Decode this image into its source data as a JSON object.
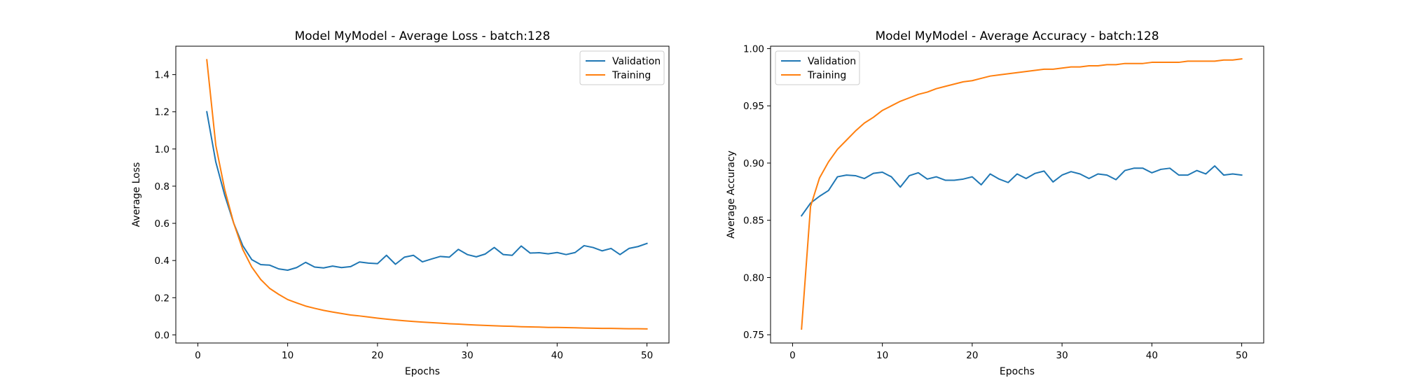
{
  "chart_data": [
    {
      "type": "line",
      "title": "Model MyModel - Average Loss - batch:128",
      "xlabel": "Epochs",
      "ylabel": "Average Loss",
      "xlim": [
        -2.45,
        52.45
      ],
      "ylim": [
        -0.0437,
        1.5529
      ],
      "xticks": [
        0,
        10,
        20,
        30,
        40,
        50
      ],
      "yticks": [
        0.0,
        0.2,
        0.4,
        0.6,
        0.8,
        1.0,
        1.2,
        1.4
      ],
      "ytick_labels": [
        "0.0",
        "0.2",
        "0.4",
        "0.6",
        "0.8",
        "1.0",
        "1.2",
        "1.4"
      ],
      "grid": false,
      "legend_position": "upper right",
      "x": [
        1,
        2,
        3,
        4,
        5,
        6,
        7,
        8,
        9,
        10,
        11,
        12,
        13,
        14,
        15,
        16,
        17,
        18,
        19,
        20,
        21,
        22,
        23,
        24,
        25,
        26,
        27,
        28,
        29,
        30,
        31,
        32,
        33,
        34,
        35,
        36,
        37,
        38,
        39,
        40,
        41,
        42,
        43,
        44,
        45,
        46,
        47,
        48,
        49,
        50
      ],
      "series": [
        {
          "name": "Validation",
          "color": "#1f77b4",
          "values": [
            1.2,
            0.93,
            0.75,
            0.6,
            0.48,
            0.405,
            0.378,
            0.375,
            0.355,
            0.348,
            0.362,
            0.39,
            0.365,
            0.36,
            0.37,
            0.362,
            0.367,
            0.392,
            0.386,
            0.383,
            0.428,
            0.38,
            0.418,
            0.428,
            0.393,
            0.408,
            0.422,
            0.418,
            0.46,
            0.432,
            0.42,
            0.435,
            0.47,
            0.432,
            0.428,
            0.478,
            0.44,
            0.442,
            0.436,
            0.443,
            0.432,
            0.443,
            0.48,
            0.47,
            0.452,
            0.465,
            0.432,
            0.465,
            0.475,
            0.492
          ]
        },
        {
          "name": "Training",
          "color": "#ff7f0e",
          "values": [
            1.48,
            1.02,
            0.78,
            0.6,
            0.46,
            0.365,
            0.298,
            0.25,
            0.218,
            0.19,
            0.172,
            0.155,
            0.143,
            0.132,
            0.123,
            0.115,
            0.107,
            0.102,
            0.096,
            0.09,
            0.085,
            0.08,
            0.076,
            0.072,
            0.069,
            0.066,
            0.063,
            0.06,
            0.058,
            0.055,
            0.053,
            0.051,
            0.049,
            0.047,
            0.046,
            0.044,
            0.043,
            0.042,
            0.04,
            0.04,
            0.039,
            0.038,
            0.037,
            0.036,
            0.035,
            0.035,
            0.034,
            0.033,
            0.033,
            0.032
          ]
        }
      ]
    },
    {
      "type": "line",
      "title": "Model MyModel - Average Accuracy - batch:128",
      "xlabel": "Epochs",
      "ylabel": "Average Accuracy",
      "xlim": [
        -2.45,
        52.45
      ],
      "ylim": [
        0.7428,
        1.0021
      ],
      "xticks": [
        0,
        10,
        20,
        30,
        40,
        50
      ],
      "yticks": [
        0.75,
        0.8,
        0.85,
        0.9,
        0.95,
        1.0
      ],
      "ytick_labels": [
        "0.75",
        "0.80",
        "0.85",
        "0.90",
        "0.95",
        "1.00"
      ],
      "grid": false,
      "legend_position": "upper left",
      "x": [
        1,
        2,
        3,
        4,
        5,
        6,
        7,
        8,
        9,
        10,
        11,
        12,
        13,
        14,
        15,
        16,
        17,
        18,
        19,
        20,
        21,
        22,
        23,
        24,
        25,
        26,
        27,
        28,
        29,
        30,
        31,
        32,
        33,
        34,
        35,
        36,
        37,
        38,
        39,
        40,
        41,
        42,
        43,
        44,
        45,
        46,
        47,
        48,
        49,
        50
      ],
      "series": [
        {
          "name": "Validation",
          "color": "#1f77b4",
          "values": [
            0.854,
            0.865,
            0.871,
            0.876,
            0.888,
            0.8895,
            0.889,
            0.8865,
            0.891,
            0.892,
            0.888,
            0.879,
            0.889,
            0.8915,
            0.886,
            0.888,
            0.885,
            0.885,
            0.886,
            0.888,
            0.881,
            0.8905,
            0.886,
            0.883,
            0.8905,
            0.8865,
            0.891,
            0.893,
            0.8835,
            0.8895,
            0.8925,
            0.8905,
            0.8865,
            0.8905,
            0.8895,
            0.8855,
            0.8935,
            0.8955,
            0.8955,
            0.8915,
            0.8945,
            0.8955,
            0.8895,
            0.8895,
            0.8935,
            0.8905,
            0.8975,
            0.8895,
            0.8905,
            0.8895
          ]
        },
        {
          "name": "Training",
          "color": "#ff7f0e",
          "values": [
            0.755,
            0.862,
            0.887,
            0.901,
            0.912,
            0.92,
            0.928,
            0.935,
            0.94,
            0.946,
            0.95,
            0.954,
            0.957,
            0.96,
            0.962,
            0.965,
            0.967,
            0.969,
            0.971,
            0.972,
            0.974,
            0.976,
            0.977,
            0.978,
            0.979,
            0.98,
            0.981,
            0.982,
            0.982,
            0.983,
            0.984,
            0.984,
            0.985,
            0.985,
            0.986,
            0.986,
            0.987,
            0.987,
            0.987,
            0.988,
            0.988,
            0.988,
            0.988,
            0.989,
            0.989,
            0.989,
            0.989,
            0.99,
            0.99,
            0.991
          ]
        }
      ]
    }
  ]
}
